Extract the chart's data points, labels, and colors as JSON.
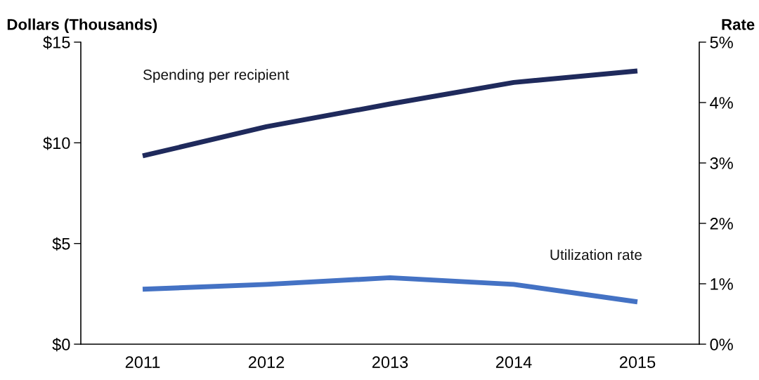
{
  "chart_data": {
    "type": "line",
    "ylabel": "Dollars (Thousands)",
    "y2label": "Rate",
    "categories": [
      "2011",
      "2012",
      "2013",
      "2014",
      "2015"
    ],
    "series": [
      {
        "name": "Spending per recipient",
        "color": "#1f2a5c",
        "values": [
          9.35,
          10.8,
          11.93,
          13.0,
          13.57
        ]
      },
      {
        "name": "Utilization rate",
        "color": "#4472c4",
        "axis": "y2",
        "values": [
          0.91,
          0.99,
          1.1,
          0.99,
          0.7
        ]
      }
    ],
    "ylim": [
      0,
      15
    ],
    "yticks": [
      {
        "value": 0,
        "label": "$0"
      },
      {
        "value": 5,
        "label": "$5"
      },
      {
        "value": 10,
        "label": "$10"
      },
      {
        "value": 15,
        "label": "$15"
      }
    ],
    "y2lim": [
      0,
      5
    ],
    "y2ticks": [
      {
        "value": 0,
        "label": "0%"
      },
      {
        "value": 1,
        "label": "1%"
      },
      {
        "value": 2,
        "label": "2%"
      },
      {
        "value": 3,
        "label": "3%"
      },
      {
        "value": 4,
        "label": "4%"
      },
      {
        "value": 5,
        "label": "5%"
      }
    ],
    "grid": false,
    "legend": false,
    "marker": "none",
    "line_style": "solid"
  }
}
